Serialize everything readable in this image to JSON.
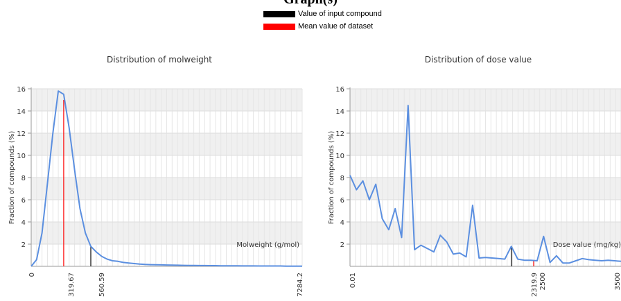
{
  "page": {
    "heading": "Graph(s)"
  },
  "legend": {
    "items": [
      {
        "label": "Value of input compound",
        "color": "#000000"
      },
      {
        "label": "Mean value of dataset",
        "color": "#ff0000"
      }
    ]
  },
  "chart_data": [
    {
      "type": "line",
      "title": "Distribution of molweight",
      "xlabel": "Molweight (g/mol)",
      "ylabel": "Fraction of compounds (%)",
      "ylim": [
        0,
        16
      ],
      "yticks": [
        2,
        4,
        6,
        8,
        10,
        12,
        14,
        16
      ],
      "grid": true,
      "bands": true,
      "color": "#5b8fe0",
      "x_tick_labels": [
        "0",
        "319.67",
        "560.59",
        "7284.2"
      ],
      "markers": {
        "mean": "319.67",
        "input": "560.59"
      },
      "x": [
        0,
        1,
        2,
        3,
        4,
        5,
        6,
        7,
        8,
        9,
        10,
        11,
        12,
        13,
        14,
        15,
        16,
        17,
        18,
        19,
        20,
        21,
        22,
        23,
        24,
        25,
        26,
        27,
        28,
        29,
        30,
        31,
        32,
        33,
        34,
        35,
        36,
        37,
        38,
        39,
        40,
        41,
        42,
        43,
        44,
        45,
        46,
        47,
        48,
        49,
        50
      ],
      "values": [
        0,
        0.6,
        3,
        7.5,
        12,
        15.8,
        15.5,
        12.5,
        8.7,
        5.2,
        3,
        1.8,
        1.3,
        0.9,
        0.65,
        0.5,
        0.45,
        0.35,
        0.3,
        0.25,
        0.2,
        0.17,
        0.15,
        0.14,
        0.13,
        0.12,
        0.11,
        0.1,
        0.09,
        0.08,
        0.08,
        0.07,
        0.07,
        0.06,
        0.06,
        0.05,
        0.05,
        0.05,
        0.05,
        0.04,
        0.04,
        0.04,
        0.03,
        0.03,
        0.03,
        0.03,
        0.03,
        0.02,
        0.02,
        0.02,
        0.02
      ],
      "mean_value": 15.0,
      "input_value": 1.8
    },
    {
      "type": "line",
      "title": "Distribution of dose value",
      "xlabel": "Dose value (mg/kg)",
      "ylabel": "Fraction of compounds (%)",
      "ylim": [
        0,
        16
      ],
      "yticks": [
        2,
        4,
        6,
        8,
        10,
        12,
        14,
        16
      ],
      "grid": true,
      "bands": true,
      "color": "#5b8fe0",
      "x_tick_labels": [
        "0.01",
        "2319.9",
        "2500",
        "3500"
      ],
      "markers": {
        "mean": "2319.9",
        "input": "2500"
      },
      "x": [
        0,
        1,
        2,
        3,
        4,
        5,
        6,
        7,
        8,
        9,
        10,
        11,
        12,
        13,
        14,
        15,
        16,
        17,
        18,
        19,
        20,
        21,
        22,
        23,
        24,
        25,
        26,
        27,
        28,
        29,
        30,
        31,
        32,
        33,
        34,
        35,
        36,
        37,
        38,
        39,
        40,
        41,
        42
      ],
      "values": [
        8.2,
        6.9,
        7.7,
        6.0,
        7.4,
        4.3,
        3.3,
        5.2,
        2.6,
        14.5,
        1.5,
        1.9,
        1.6,
        1.3,
        2.8,
        2.2,
        1.1,
        1.2,
        0.85,
        5.5,
        0.75,
        0.8,
        0.75,
        0.7,
        0.65,
        1.8,
        0.65,
        0.55,
        0.55,
        0.5,
        2.7,
        0.35,
        0.95,
        0.3,
        0.3,
        0.5,
        0.7,
        0.6,
        0.55,
        0.5,
        0.55,
        0.5,
        0.45
      ],
      "mean_value": 0.55,
      "input_value": 1.8
    }
  ]
}
